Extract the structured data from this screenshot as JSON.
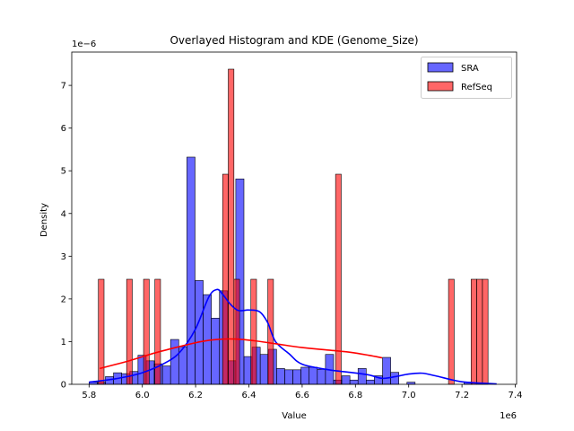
{
  "chart_data": {
    "type": "histogram",
    "title": "Overlayed Histogram and KDE (Genome_Size)",
    "xlabel": "Value",
    "ylabel": "Density",
    "x_offset_label": "1e6",
    "y_offset_label": "1e−6",
    "x_scale": 1000000,
    "y_scale": 1e-06,
    "xlim": [
      5.735,
      7.405
    ],
    "ylim": [
      0,
      7.78
    ],
    "x_ticks": [
      5.8,
      6.0,
      6.2,
      6.4,
      6.6,
      6.8,
      7.0,
      7.2,
      7.4
    ],
    "x_tick_labels": [
      "5.8",
      "6.0",
      "6.2",
      "6.4",
      "6.6",
      "6.8",
      "7.0",
      "7.2",
      "7.4"
    ],
    "y_ticks": [
      0,
      1,
      2,
      3,
      4,
      5,
      6,
      7
    ],
    "y_tick_labels": [
      "0",
      "1",
      "2",
      "3",
      "4",
      "5",
      "6",
      "7"
    ],
    "legend_position": "top-right",
    "series": [
      {
        "name": "SRA",
        "color": "#0000ff",
        "fill_opacity": 0.6,
        "bin_start": 5.8,
        "bin_width": 0.0306,
        "bin_values": [
          0.05,
          0.05,
          0.18,
          0.27,
          0.25,
          0.3,
          0.68,
          0.55,
          0.48,
          0.43,
          1.05,
          0.88,
          5.32,
          2.43,
          2.1,
          1.55,
          2.19,
          0.55,
          4.81,
          0.65,
          0.87,
          0.7,
          0.82,
          0.37,
          0.34,
          0.34,
          0.4,
          0.4,
          0.35,
          0.7,
          0.1,
          0.2,
          0.1,
          0.37,
          0.1,
          0.2,
          0.63,
          0.28,
          0.0,
          0.05,
          0.0,
          0.0,
          0.0,
          0.0,
          0.0,
          0.0,
          0.05
        ],
        "kde_x": [
          5.8,
          5.9,
          6.0,
          6.1,
          6.15,
          6.2,
          6.25,
          6.28,
          6.3,
          6.33,
          6.36,
          6.4,
          6.44,
          6.47,
          6.5,
          6.55,
          6.6,
          6.7,
          6.78,
          6.85,
          6.9,
          6.95,
          7.0,
          7.05,
          7.1,
          7.2,
          7.33
        ],
        "kde_y": [
          0.05,
          0.13,
          0.27,
          0.55,
          0.82,
          1.3,
          2.05,
          2.22,
          2.12,
          1.88,
          1.73,
          1.74,
          1.7,
          1.45,
          1.0,
          0.72,
          0.47,
          0.34,
          0.28,
          0.22,
          0.14,
          0.18,
          0.24,
          0.26,
          0.2,
          0.06,
          0.01
        ]
      },
      {
        "name": "RefSeq",
        "color": "#ff0000",
        "fill_opacity": 0.6,
        "bin_start": 5.835,
        "bin_width": 0.0212,
        "bin_values": [
          2.46,
          0,
          0,
          0,
          0,
          2.46,
          0,
          0,
          2.46,
          0,
          2.46,
          0,
          0,
          0,
          0,
          0,
          0,
          0,
          0,
          0,
          0,
          0,
          4.92,
          7.38,
          2.46,
          0,
          0,
          2.46,
          0,
          0,
          2.46,
          0,
          0,
          0,
          0,
          0,
          0,
          0,
          0,
          0,
          0,
          0,
          4.92,
          0,
          0,
          0,
          0,
          0,
          0,
          0,
          0,
          0,
          0,
          0,
          0,
          0,
          0,
          0,
          0,
          0,
          0,
          0,
          2.46,
          0,
          0,
          0,
          2.46,
          2.46,
          2.46
        ],
        "kde_x": [
          5.84,
          5.95,
          6.05,
          6.15,
          6.22,
          6.28,
          6.35,
          6.42,
          6.5,
          6.6,
          6.7,
          6.78,
          6.85,
          6.9
        ],
        "kde_y": [
          0.37,
          0.55,
          0.74,
          0.9,
          1.0,
          1.05,
          1.06,
          1.02,
          0.95,
          0.86,
          0.8,
          0.75,
          0.68,
          0.62
        ]
      }
    ]
  }
}
